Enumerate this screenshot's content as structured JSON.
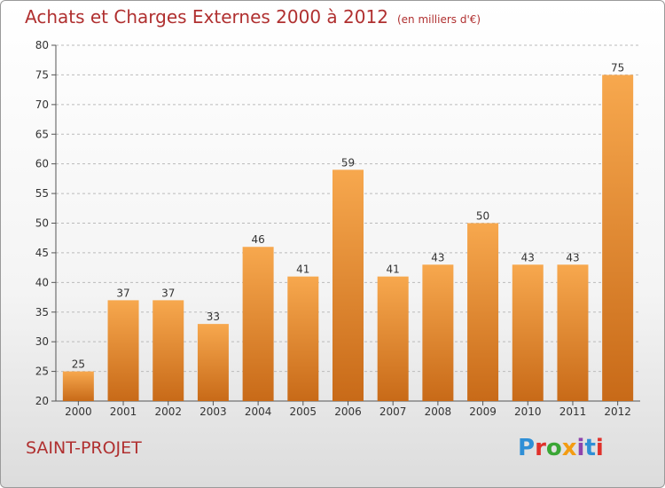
{
  "header": {
    "title": "Achats et Charges Externes 2000 à 2012",
    "unit": "(en milliers d'€)"
  },
  "footer": {
    "place": "SAINT-PROJET",
    "logo": "Proxiti",
    "logo_colors": [
      "#2f8fd6",
      "#e0312b",
      "#3aa635",
      "#f39c12",
      "#8e44ad",
      "#2f8fd6",
      "#e0312b"
    ]
  },
  "colors": {
    "bar_top": "#f7a84e",
    "bar_bottom": "#c86a18",
    "grid": "#bbbbbb"
  },
  "chart_data": {
    "type": "bar",
    "title": "Achats et Charges Externes 2000 à 2012",
    "subtitle": "(en milliers d'€)",
    "categories": [
      "2000",
      "2001",
      "2002",
      "2003",
      "2004",
      "2005",
      "2006",
      "2007",
      "2008",
      "2009",
      "2010",
      "2011",
      "2012"
    ],
    "values": [
      25,
      37,
      37,
      33,
      46,
      41,
      59,
      41,
      43,
      50,
      43,
      43,
      75
    ],
    "ylim": [
      20,
      80
    ],
    "yticks": [
      20,
      25,
      30,
      35,
      40,
      45,
      50,
      55,
      60,
      65,
      70,
      75,
      80
    ],
    "grid": true,
    "legend": "none"
  }
}
